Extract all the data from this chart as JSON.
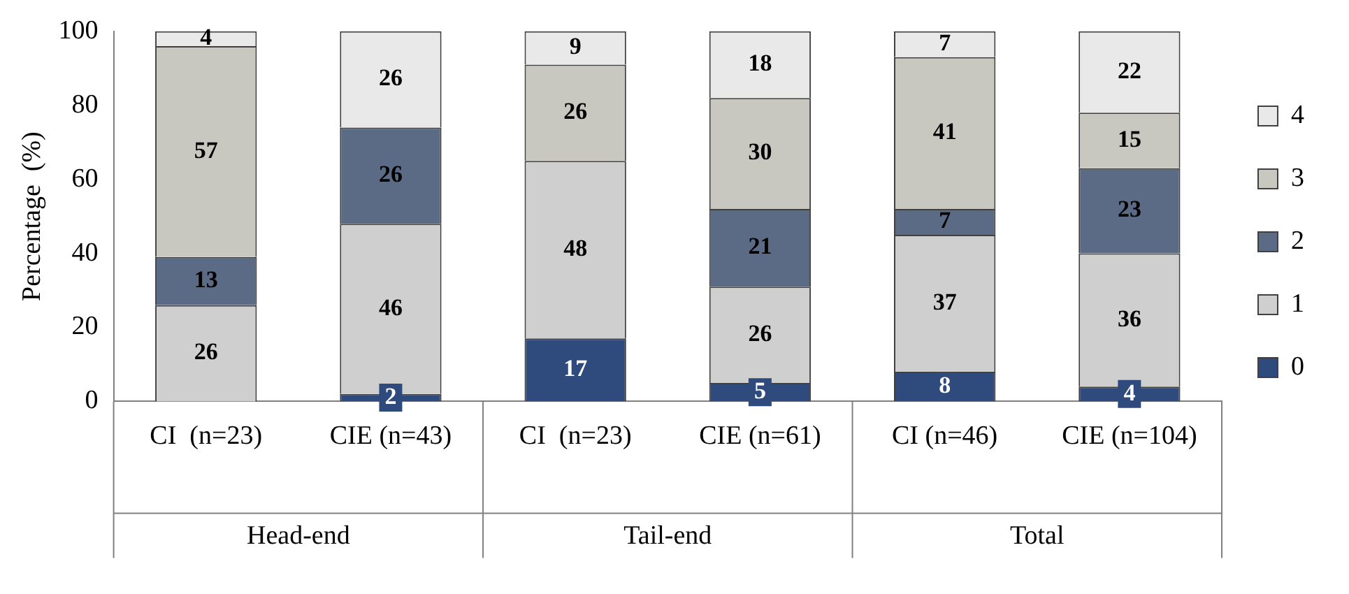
{
  "chart_data": {
    "type": "bar",
    "stacked": true,
    "ylabel": "Percentage  (%)",
    "categories": [
      "CI  (n=23)",
      "CIE (n=43)",
      "CI  (n=23)",
      "CIE (n=61)",
      "CI (n=46)",
      "CIE (n=104)"
    ],
    "annotations": [
      "Head-end",
      "Tail-end",
      "Total"
    ],
    "ylim": [
      0,
      100
    ],
    "yticks": [
      0,
      20,
      40,
      60,
      80,
      100
    ],
    "grid": false,
    "legend": "right",
    "series": [
      {
        "name": "0",
        "color": "#2f4a7c",
        "values": [
          0,
          2,
          17,
          5,
          8,
          4
        ],
        "value_labels": [
          null,
          "2",
          "17",
          "5",
          "8",
          "4"
        ]
      },
      {
        "name": "1",
        "color": "#cfcfcf",
        "values": [
          26,
          46,
          48,
          26,
          37,
          36
        ],
        "value_labels": [
          "26",
          "46",
          "48",
          "26",
          "37",
          "36"
        ]
      },
      {
        "name": "2",
        "color": "#5b6b86",
        "values": [
          13,
          26,
          0,
          21,
          7,
          23
        ],
        "value_labels": [
          "13",
          "26",
          null,
          "21",
          "7",
          "23"
        ]
      },
      {
        "name": "3",
        "color": "#c8c8c0",
        "values": [
          57,
          0,
          26,
          30,
          41,
          15
        ],
        "value_labels": [
          "57",
          null,
          "26",
          "30",
          "41",
          "15"
        ]
      },
      {
        "name": "4",
        "color": "#e9e9e9",
        "values": [
          4,
          26,
          9,
          18,
          7,
          22
        ],
        "value_labels": [
          "4",
          "26",
          "9",
          "18",
          "7",
          "22"
        ]
      }
    ]
  }
}
